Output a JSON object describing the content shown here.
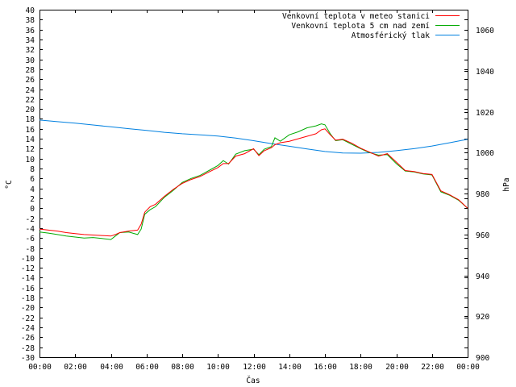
{
  "chart_data": {
    "type": "line",
    "title": "",
    "xlabel": "Čas",
    "ylabel_left": "°C",
    "ylabel_right": "hPa",
    "x_ticks": [
      "00:00",
      "02:00",
      "04:00",
      "06:00",
      "08:00",
      "10:00",
      "12:00",
      "14:00",
      "16:00",
      "18:00",
      "20:00",
      "22:00",
      "00:00"
    ],
    "xlim_hours": [
      0,
      24
    ],
    "ylim_left": [
      -30,
      40
    ],
    "y_left_step": 2,
    "ylim_right": [
      900,
      1070
    ],
    "y_right_ticks": [
      900,
      920,
      940,
      960,
      980,
      1000,
      1020,
      1040,
      1060
    ],
    "grid": false,
    "legend_position": "top-right",
    "series": [
      {
        "name": "Venkovní teplota v meteo stanici",
        "axis": "left",
        "color": "#ff0000",
        "x": [
          0,
          0.5,
          1,
          1.5,
          2,
          2.5,
          3,
          3.5,
          4,
          4.25,
          4.5,
          5,
          5.5,
          5.7,
          5.9,
          6.2,
          6.5,
          7,
          7.5,
          8,
          8.5,
          9,
          9.5,
          10,
          10.3,
          10.6,
          11,
          11.5,
          12,
          12.3,
          12.6,
          13,
          13.2,
          13.5,
          14,
          14.5,
          15,
          15.5,
          15.8,
          16,
          16.3,
          16.6,
          17,
          17.5,
          18,
          18.5,
          19,
          19.5,
          20,
          20.5,
          21,
          21.5,
          22,
          22.5,
          23,
          23.5,
          24
        ],
        "values": [
          -4.2,
          -4.4,
          -4.6,
          -4.9,
          -5.1,
          -5.3,
          -5.4,
          -5.5,
          -5.6,
          -5.3,
          -4.9,
          -4.6,
          -4.4,
          -3.2,
          -0.8,
          0.3,
          0.8,
          2.4,
          3.8,
          5.0,
          5.8,
          6.4,
          7.3,
          8.2,
          9.0,
          9.0,
          10.5,
          11.0,
          12.0,
          10.6,
          11.6,
          12.2,
          12.8,
          13.2,
          13.5,
          14.0,
          14.5,
          15.0,
          15.8,
          16.0,
          14.8,
          13.7,
          13.9,
          13.1,
          12.1,
          11.3,
          10.5,
          11.0,
          9.3,
          7.6,
          7.4,
          7.0,
          6.8,
          3.5,
          2.7,
          1.7,
          0.0
        ]
      },
      {
        "name": "Venkovní teplota 5 cm nad zemí",
        "axis": "left",
        "color": "#00aa00",
        "x": [
          0,
          0.5,
          1,
          1.5,
          2,
          2.5,
          3,
          3.5,
          4,
          4.25,
          4.5,
          5,
          5.5,
          5.7,
          5.9,
          6.2,
          6.5,
          7,
          7.5,
          8,
          8.5,
          9,
          9.5,
          10,
          10.3,
          10.6,
          11,
          11.5,
          12,
          12.3,
          12.6,
          13,
          13.2,
          13.5,
          14,
          14.5,
          15,
          15.5,
          15.8,
          16,
          16.3,
          16.6,
          17,
          17.5,
          18,
          18.5,
          19,
          19.5,
          20,
          20.5,
          21,
          21.5,
          22,
          22.5,
          23,
          23.5,
          24
        ],
        "values": [
          -4.8,
          -5.0,
          -5.3,
          -5.6,
          -5.8,
          -6.0,
          -5.9,
          -6.1,
          -6.3,
          -5.6,
          -4.9,
          -4.8,
          -5.3,
          -4.2,
          -1.2,
          -0.3,
          0.3,
          2.2,
          3.6,
          5.2,
          6.0,
          6.6,
          7.6,
          8.6,
          9.6,
          8.9,
          10.9,
          11.6,
          11.9,
          10.8,
          11.9,
          12.4,
          14.2,
          13.5,
          14.8,
          15.4,
          16.2,
          16.6,
          17.0,
          16.8,
          15.0,
          13.6,
          13.8,
          12.9,
          12.0,
          11.2,
          10.7,
          10.8,
          9.0,
          7.5,
          7.3,
          6.9,
          6.7,
          3.3,
          2.6,
          1.6,
          0.0
        ]
      },
      {
        "name": "Atmosférický tlak",
        "axis": "right",
        "color": "#0080e0",
        "x": [
          0,
          1,
          2,
          3,
          4,
          5,
          6,
          7,
          8,
          9,
          10,
          11,
          12,
          13,
          14,
          15,
          16,
          17,
          18,
          19,
          20,
          21,
          22,
          23,
          24
        ],
        "values": [
          1016.0,
          1015.2,
          1014.5,
          1013.6,
          1012.7,
          1011.8,
          1010.9,
          1010.0,
          1009.3,
          1008.8,
          1008.2,
          1007.2,
          1005.9,
          1004.5,
          1003.2,
          1001.9,
          1000.6,
          999.9,
          999.8,
          1000.2,
          1001.0,
          1002.0,
          1003.3,
          1004.9,
          1006.6
        ]
      }
    ]
  }
}
